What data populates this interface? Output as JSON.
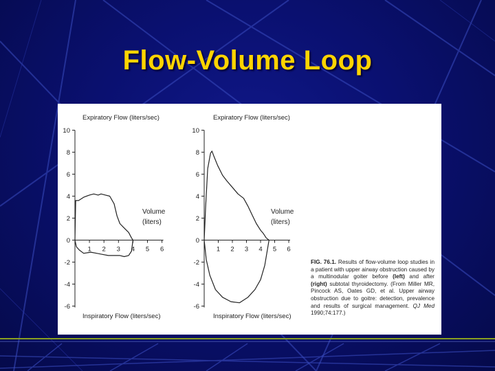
{
  "slide": {
    "title": "Flow-Volume Loop",
    "colors": {
      "background": "#0a1070",
      "title": "#ffd400",
      "accent_line": "#8aa020"
    }
  },
  "caption": {
    "fig_label": "FIG. 76.1.",
    "text_1": " Results of flow-volume loop studies in a patient with upper airway obstruction caused by a multinodular goiter before ",
    "left_word": "(left)",
    "text_2": " and after ",
    "right_word": "(right)",
    "text_3": " subtotal thyroidectomy. (From Miller MR, Pincock AS, Oates GD, et al. Upper airway obstruction due to goitre: detection, prevalence and results of surgical management. ",
    "journal": "QJ Med",
    "text_4": " 1990;74:177.)"
  },
  "chart_data": [
    {
      "type": "line",
      "top_label": "Expiratory Flow (liters/sec)",
      "bottom_label": "Inspiratory Flow (liters/sec)",
      "xlabel": [
        "Volume",
        "(liters)"
      ],
      "xticks": [
        "1",
        "2",
        "3",
        "4",
        "5",
        "6"
      ],
      "yticks": [
        "10",
        "8",
        "6",
        "4",
        "2",
        "0",
        "-2",
        "-4",
        "-6"
      ],
      "xlim": [
        0,
        6
      ],
      "ylim": [
        -6,
        10
      ],
      "series": [
        {
          "values": [
            [
              0,
              0
            ],
            [
              0.05,
              3.6
            ],
            [
              0.25,
              3.6
            ],
            [
              0.6,
              3.9
            ],
            [
              1.0,
              4.1
            ],
            [
              1.3,
              4.2
            ],
            [
              1.6,
              4.1
            ],
            [
              1.8,
              4.2
            ],
            [
              2.1,
              4.1
            ],
            [
              2.4,
              4.0
            ],
            [
              2.7,
              3.3
            ],
            [
              2.9,
              2.2
            ],
            [
              3.1,
              1.5
            ],
            [
              3.4,
              1.1
            ],
            [
              3.7,
              0.7
            ],
            [
              3.9,
              0.2
            ],
            [
              4.0,
              0
            ]
          ]
        },
        {
          "values": [
            [
              4.0,
              0
            ],
            [
              3.9,
              -1.0
            ],
            [
              3.7,
              -1.4
            ],
            [
              3.4,
              -1.5
            ],
            [
              3.1,
              -1.4
            ],
            [
              2.7,
              -1.4
            ],
            [
              2.3,
              -1.4
            ],
            [
              1.9,
              -1.3
            ],
            [
              1.5,
              -1.2
            ],
            [
              1.1,
              -1.1
            ],
            [
              0.6,
              -1.2
            ],
            [
              0.3,
              -0.9
            ],
            [
              0.1,
              -0.6
            ],
            [
              0,
              0
            ]
          ]
        }
      ]
    },
    {
      "type": "line",
      "top_label": "Expiratory Flow (liters/sec)",
      "bottom_label": "Inspiratory Flow (liters/sec)",
      "xlabel": [
        "Volume",
        "(liters)"
      ],
      "xticks": [
        "1",
        "2",
        "3",
        "4",
        "5",
        "6"
      ],
      "yticks": [
        "10",
        "8",
        "6",
        "4",
        "2",
        "0",
        "-2",
        "-4",
        "-6"
      ],
      "xlim": [
        0,
        6
      ],
      "ylim": [
        -6,
        10
      ],
      "series": [
        {
          "values": [
            [
              0,
              0
            ],
            [
              0.1,
              3.0
            ],
            [
              0.25,
              6.5
            ],
            [
              0.45,
              7.9
            ],
            [
              0.55,
              8.1
            ],
            [
              0.7,
              7.6
            ],
            [
              0.95,
              6.8
            ],
            [
              1.3,
              5.9
            ],
            [
              1.6,
              5.4
            ],
            [
              2.0,
              4.8
            ],
            [
              2.4,
              4.2
            ],
            [
              2.8,
              3.8
            ],
            [
              3.1,
              3.1
            ],
            [
              3.4,
              2.3
            ],
            [
              3.7,
              1.5
            ],
            [
              4.0,
              0.9
            ],
            [
              4.2,
              0.6
            ],
            [
              4.4,
              0.2
            ],
            [
              4.6,
              0
            ]
          ]
        },
        {
          "values": [
            [
              4.6,
              0
            ],
            [
              4.3,
              -2.3
            ],
            [
              4.0,
              -3.6
            ],
            [
              3.6,
              -4.5
            ],
            [
              3.1,
              -5.2
            ],
            [
              2.5,
              -5.7
            ],
            [
              1.9,
              -5.6
            ],
            [
              1.3,
              -5.2
            ],
            [
              0.8,
              -4.5
            ],
            [
              0.4,
              -3.2
            ],
            [
              0.15,
              -1.8
            ],
            [
              0,
              0
            ]
          ]
        }
      ]
    }
  ]
}
